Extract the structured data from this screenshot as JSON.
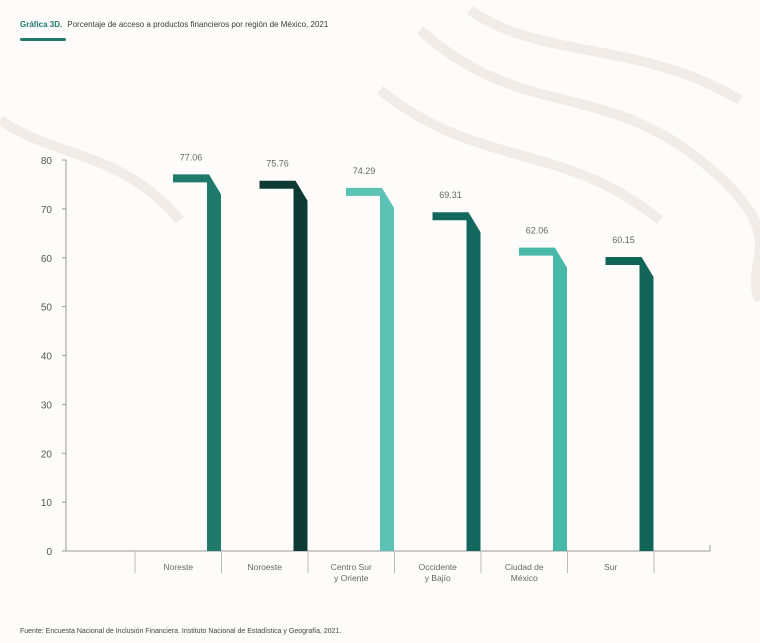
{
  "header": {
    "label": "Gráfica 3D.",
    "title": "Porcentaje de acceso a productos financieros por región de México, 2021"
  },
  "source": "Fuente: Encuesta Nacional de Inclusión Financiera. Instituto Nacional de Estadística y Geografía, 2021.",
  "colors": {
    "accent": "#1f7a6c",
    "series": [
      "#1f7a6c",
      "#0d3b34",
      "#5cc2b4",
      "#13685e",
      "#49b8a8",
      "#126358"
    ]
  },
  "chart_data": {
    "type": "bar",
    "categories": [
      [
        "Noreste"
      ],
      [
        "Noroeste"
      ],
      [
        "Centro Sur",
        "y Oriente"
      ],
      [
        "Occidente",
        "y Bajío"
      ],
      [
        "Ciudad de",
        "México"
      ],
      [
        "Sur"
      ]
    ],
    "values": [
      77.06,
      75.76,
      74.29,
      69.31,
      62.06,
      60.15
    ],
    "value_labels": [
      "77.06",
      "75.76",
      "74.29",
      "69.31",
      "62.06",
      "60.15"
    ],
    "ylim": [
      0,
      80
    ],
    "yticks": [
      0,
      10,
      20,
      30,
      40,
      50,
      60,
      70,
      80
    ],
    "grid": false,
    "legend": "none"
  }
}
